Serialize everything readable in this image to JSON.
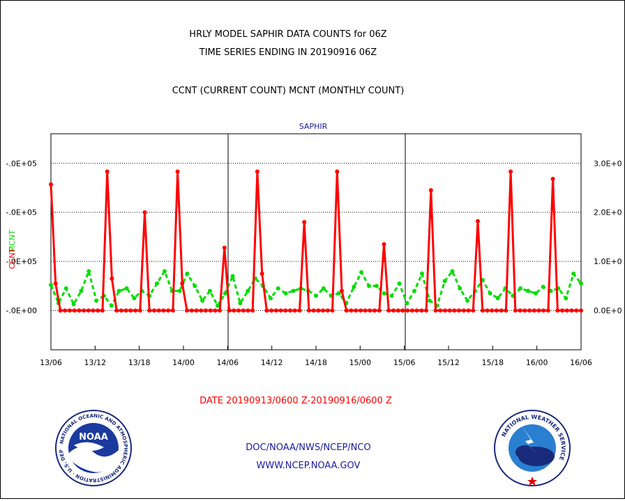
{
  "titles": {
    "line1": "HRLY MODEL SAPHIR DATA COUNTS for 06Z",
    "line2": "TIME SERIES ENDING IN 20190916 06Z",
    "line3": "CCNT (CURRENT COUNT) MCNT (MONTHLY COUNT)",
    "panel_label": "SAPHIR"
  },
  "date_range": "DATE 20190913/0600 Z-20190916/0600 Z",
  "footer": {
    "agency": "DOC/NOAA/NWS/NCEP/NCO",
    "url": "WWW.NCEP.NOAA.GOV",
    "noaa_logo_text": "NOAA",
    "noaa_ring_text": "NATIONAL OCEANIC AND ATMOSPHERIC ADMINISTRATION · U.S. DEPARTMENT OF COMMERCE",
    "nws_ring_text": "NATIONAL WEATHER SERVICE"
  },
  "colors": {
    "ccnt": "#ff0000",
    "mcnt": "#00dd00",
    "text_blue": "#1a1aa0",
    "date_red": "#ff0000"
  },
  "chart_data": {
    "type": "line",
    "title": "HRLY MODEL SAPHIR DATA COUNTS for 06Z",
    "subtitle": "TIME SERIES ENDING IN 20190916 06Z",
    "xlabel": "DATE 20190913/0600 Z-20190916/0600 Z",
    "x_tick_labels": [
      "13/06",
      "13/12",
      "13/18",
      "14/00",
      "14/06",
      "14/12",
      "14/18",
      "15/00",
      "15/06",
      "15/12",
      "15/18",
      "16/00",
      "16/06"
    ],
    "x_range_hours": [
      0,
      72
    ],
    "left_axis": {
      "label_ccnt": "CCNT",
      "label_mcnt": "MCNT",
      "tick_labels": [
        "-.0E+00",
        "-.0E+05",
        "-.0E+05",
        "-.0E+05"
      ]
    },
    "right_axis": {
      "tick_labels": [
        "0.0E+0",
        "1.0E+0",
        "2.0E+0",
        "3.0E+0"
      ]
    },
    "ylim": [
      -80000,
      360000
    ],
    "grid": true,
    "series": [
      {
        "name": "CCNT",
        "style": "solid",
        "values": [
          257000,
          55000,
          0,
          0,
          0,
          0,
          0,
          0,
          0,
          0,
          0,
          0,
          283000,
          65000,
          0,
          0,
          0,
          0,
          0,
          0,
          200000,
          0,
          0,
          0,
          0,
          0,
          0,
          283000,
          55000,
          0,
          0,
          0,
          0,
          0,
          0,
          0,
          0,
          128000,
          0,
          0,
          0,
          0,
          0,
          0,
          283000,
          75000,
          0,
          0,
          0,
          0,
          0,
          0,
          0,
          0,
          180000,
          0,
          0,
          0,
          0,
          0,
          0,
          283000,
          40000,
          0,
          0,
          0,
          0,
          0,
          0,
          0,
          0,
          135000,
          0,
          0,
          0,
          0,
          0,
          0,
          0,
          0,
          0,
          245000,
          0,
          0,
          0,
          0,
          0,
          0,
          0,
          0,
          0,
          182000,
          0,
          0,
          0,
          0,
          0,
          0,
          283000,
          0,
          0,
          0,
          0,
          0,
          0,
          0,
          0,
          268000,
          0,
          0,
          0,
          0,
          0,
          0
        ]
      },
      {
        "name": "MCNT",
        "style": "dotted",
        "values": [
          52000,
          15000,
          45000,
          13000,
          40000,
          80000,
          20000,
          30000,
          10000,
          40000,
          45000,
          25000,
          40000,
          30000,
          55000,
          80000,
          40000,
          40000,
          75000,
          50000,
          20000,
          40000,
          10000,
          35000,
          70000,
          15000,
          40000,
          65000,
          50000,
          25000,
          45000,
          35000,
          40000,
          45000,
          40000,
          30000,
          45000,
          30000,
          35000,
          15000,
          48000,
          78000,
          50000,
          50000,
          35000,
          30000,
          55000,
          15000,
          40000,
          75000,
          20000,
          10000,
          60000,
          80000,
          45000,
          20000,
          40000,
          62000,
          35000,
          25000,
          45000,
          30000,
          45000,
          40000,
          35000,
          48000,
          40000,
          45000,
          25000,
          75000,
          55000
        ]
      }
    ]
  }
}
